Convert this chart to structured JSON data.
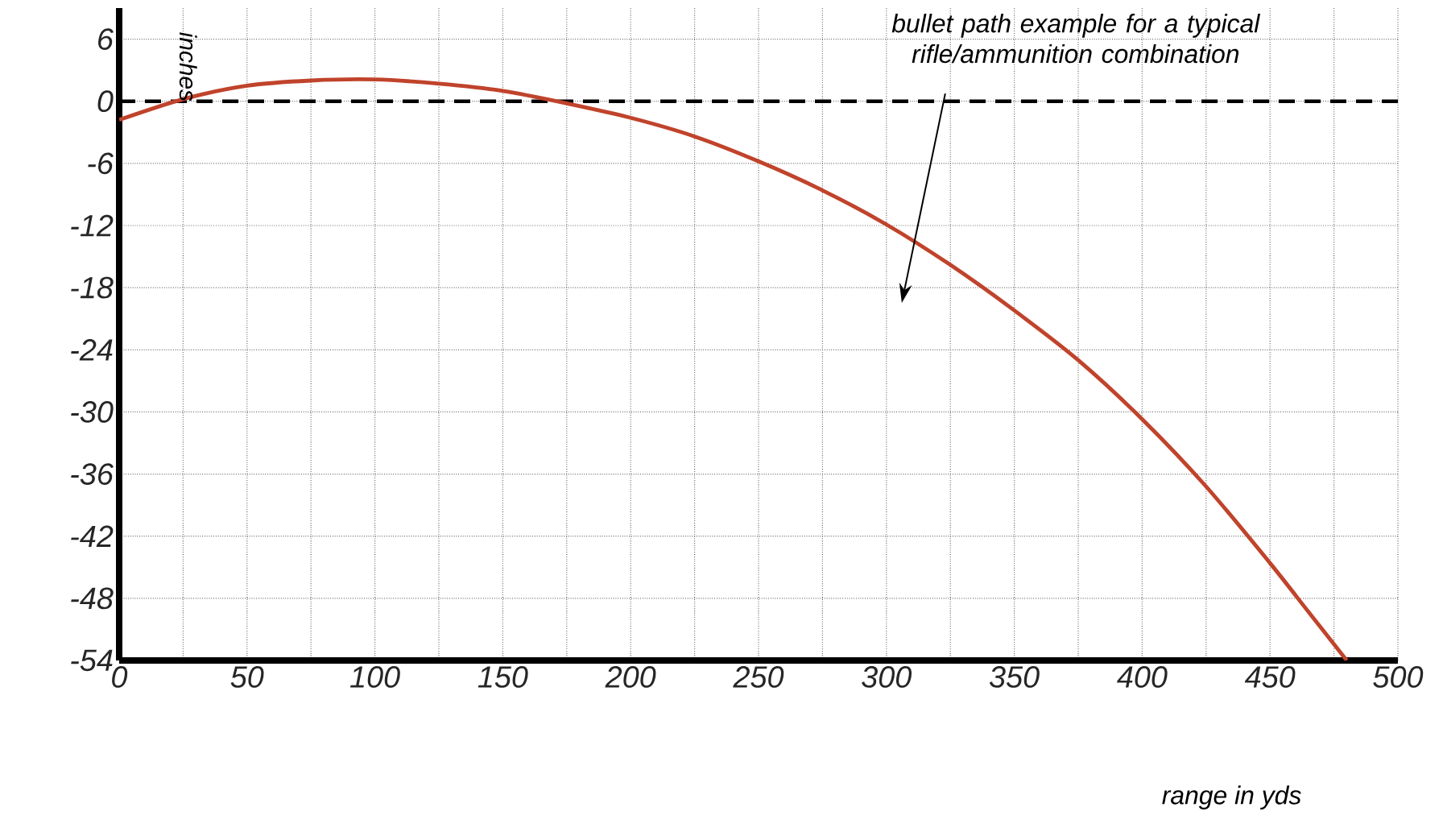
{
  "chart_data": {
    "type": "line",
    "xlabel": "range in yds",
    "ylabel": "inches",
    "x": [
      0,
      25,
      50,
      75,
      100,
      125,
      150,
      175,
      200,
      225,
      250,
      275,
      300,
      325,
      350,
      375,
      400,
      425,
      450,
      465,
      480
    ],
    "series": [
      {
        "color": "#c0432b",
        "values": [
          -1.8,
          0.2,
          1.5,
          2.0,
          2.1,
          1.7,
          1.0,
          -0.2,
          -1.6,
          -3.4,
          -5.8,
          -8.6,
          -11.9,
          -15.8,
          -20.2,
          -25.0,
          -30.7,
          -37.2,
          -44.6,
          -49.3,
          -54
        ]
      }
    ],
    "xlim": [
      0,
      500
    ],
    "ylim": [
      -54,
      9
    ],
    "xticks": [
      0,
      {
        "value": 25,
        "label": null
      },
      50,
      {
        "value": 75,
        "label": null
      },
      100,
      {
        "value": 125,
        "label": null
      },
      150,
      {
        "value": 175,
        "label": null
      },
      200,
      {
        "value": 225,
        "label": null
      },
      250,
      {
        "value": 275,
        "label": null
      },
      300,
      {
        "value": 325,
        "label": null
      },
      350,
      {
        "value": 375,
        "label": null
      },
      400,
      {
        "value": 425,
        "label": null
      },
      450,
      {
        "value": 475,
        "label": null
      },
      500
    ],
    "yticks": [
      -54,
      -48,
      -42,
      -36,
      -30,
      -24,
      -18,
      -12,
      -6,
      0,
      6
    ],
    "grid": true,
    "marker": "none",
    "line_style": "solid",
    "ref_lines": [
      {
        "axis": "y",
        "value": 0,
        "color": "#000000",
        "line_style": "dashed"
      }
    ],
    "annotations": [
      "bullet path example for a typical rifle/ammunition combination"
    ]
  }
}
